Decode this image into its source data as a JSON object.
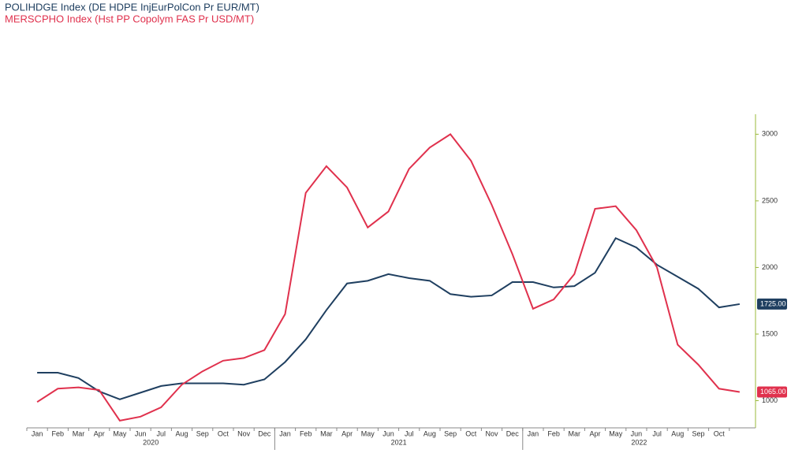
{
  "chart_data": {
    "type": "line",
    "categories": [
      "Jan",
      "Feb",
      "Mar",
      "Apr",
      "May",
      "Jun",
      "Jul",
      "Aug",
      "Sep",
      "Oct",
      "Nov",
      "Dec",
      "Jan",
      "Feb",
      "Mar",
      "Apr",
      "May",
      "Jun",
      "Jul",
      "Aug",
      "Sep",
      "Oct",
      "Nov",
      "Dec",
      "Jan",
      "Feb",
      "Mar",
      "Apr",
      "May",
      "Jun",
      "Jul",
      "Aug",
      "Sep",
      "Oct",
      null
    ],
    "years": [
      "2020",
      "2021",
      "2022"
    ],
    "series": [
      {
        "name": "POLIHDGE Index (DE HDPE InjEurPolCon Pr EUR/MT)",
        "color": "#1f3f60",
        "values": [
          1210,
          1210,
          1170,
          1070,
          1010,
          1060,
          1110,
          1130,
          1130,
          1130,
          1120,
          1160,
          1290,
          1460,
          1680,
          1880,
          1900,
          1950,
          1920,
          1900,
          1800,
          1780,
          1790,
          1890,
          1890,
          1850,
          1860,
          1960,
          2220,
          2150,
          2020,
          1930,
          1840,
          1700,
          1725
        ],
        "value_labels": [
          null,
          null,
          null,
          null,
          null,
          null,
          null,
          null,
          null,
          null,
          null,
          null,
          null,
          null,
          null,
          null,
          null,
          null,
          null,
          null,
          null,
          null,
          null,
          null,
          null,
          null,
          null,
          null,
          null,
          null,
          null,
          null,
          null,
          null,
          "1725.00"
        ]
      },
      {
        "name": "MERSCPHO Index (Hst PP Copolym FAS Pr USD/MT)",
        "color": "#e0314d",
        "values": [
          990,
          1090,
          1100,
          1080,
          850,
          880,
          950,
          1120,
          1220,
          1300,
          1320,
          1380,
          1650,
          2560,
          2760,
          2600,
          2300,
          2420,
          2740,
          2900,
          3000,
          2800,
          2470,
          2100,
          1690,
          1760,
          1950,
          2440,
          2460,
          2280,
          2000,
          1420,
          1270,
          1090,
          1065
        ],
        "value_labels": [
          null,
          null,
          null,
          null,
          null,
          null,
          null,
          null,
          null,
          null,
          null,
          null,
          null,
          null,
          null,
          null,
          null,
          null,
          null,
          null,
          null,
          null,
          null,
          null,
          null,
          null,
          null,
          null,
          null,
          null,
          null,
          null,
          null,
          null,
          "1065.00"
        ]
      }
    ],
    "ylim": [
      796,
      3150
    ],
    "yticks": [
      1000,
      1500,
      2000,
      2500,
      3000
    ],
    "axis_color": "#9ab83a"
  }
}
